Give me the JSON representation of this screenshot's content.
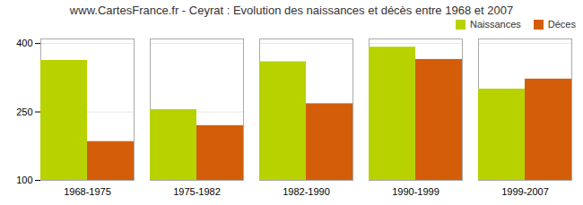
{
  "chart_data": {
    "type": "bar",
    "title": "www.CartesFrance.fr - Ceyrat : Evolution des naissances et décès entre 1968 et 2007",
    "categories": [
      "1968-1975",
      "1975-1982",
      "1982-1990",
      "1990-1999",
      "1999-2007"
    ],
    "series": [
      {
        "name": "Naissances",
        "color": "#b8d200",
        "values": [
          363,
          255,
          360,
          392,
          300
        ]
      },
      {
        "name": "Déces",
        "color": "#d45d0a",
        "values": [
          185,
          220,
          268,
          365,
          322
        ]
      }
    ],
    "ylim": [
      100,
      410
    ],
    "yticks": [
      100,
      250,
      400
    ],
    "grid": true,
    "legend": "upper right"
  }
}
